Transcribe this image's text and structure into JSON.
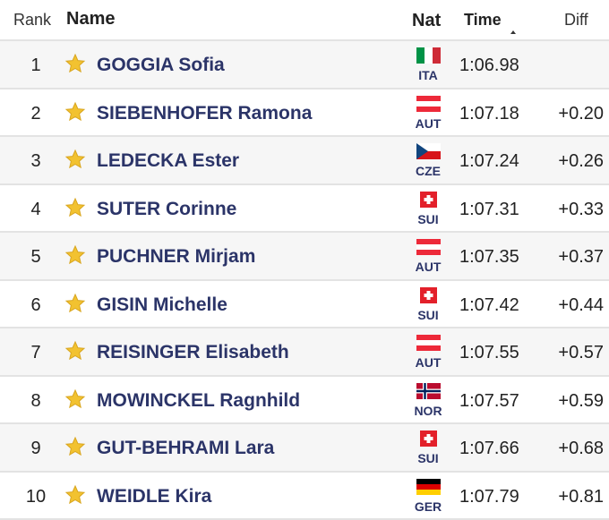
{
  "header": {
    "rank": "Rank",
    "name": "Name",
    "nat": "Nat",
    "time": "Time",
    "diff": "Diff"
  },
  "rows": [
    {
      "rank": 1,
      "name": "GOGGIA Sofia",
      "nat": "ITA",
      "time": "1:06.98"
    },
    {
      "rank": 2,
      "name": "SIEBENHOFER Ramona",
      "nat": "AUT",
      "time": "1:07.18",
      "diff": "+0.20"
    },
    {
      "rank": 3,
      "name": "LEDECKA Ester",
      "nat": "CZE",
      "time": "1:07.24",
      "diff": "+0.26"
    },
    {
      "rank": 4,
      "name": "SUTER Corinne",
      "nat": "SUI",
      "time": "1:07.31",
      "diff": "+0.33"
    },
    {
      "rank": 5,
      "name": "PUCHNER Mirjam",
      "nat": "AUT",
      "time": "1:07.35",
      "diff": "+0.37"
    },
    {
      "rank": 6,
      "name": "GISIN Michelle",
      "nat": "SUI",
      "time": "1:07.42",
      "diff": "+0.44"
    },
    {
      "rank": 7,
      "name": "REISINGER Elisabeth",
      "nat": "AUT",
      "time": "1:07.55",
      "diff": "+0.57"
    },
    {
      "rank": 8,
      "name": "MOWINCKEL Ragnhild",
      "nat": "NOR",
      "time": "1:07.57",
      "diff": "+0.59"
    },
    {
      "rank": 9,
      "name": "GUT-BEHRAMI Lara",
      "nat": "SUI",
      "time": "1:07.66",
      "diff": "+0.68"
    },
    {
      "rank": 10,
      "name": "WEIDLE Kira",
      "nat": "GER",
      "time": "1:07.79",
      "diff": "+0.81"
    }
  ]
}
